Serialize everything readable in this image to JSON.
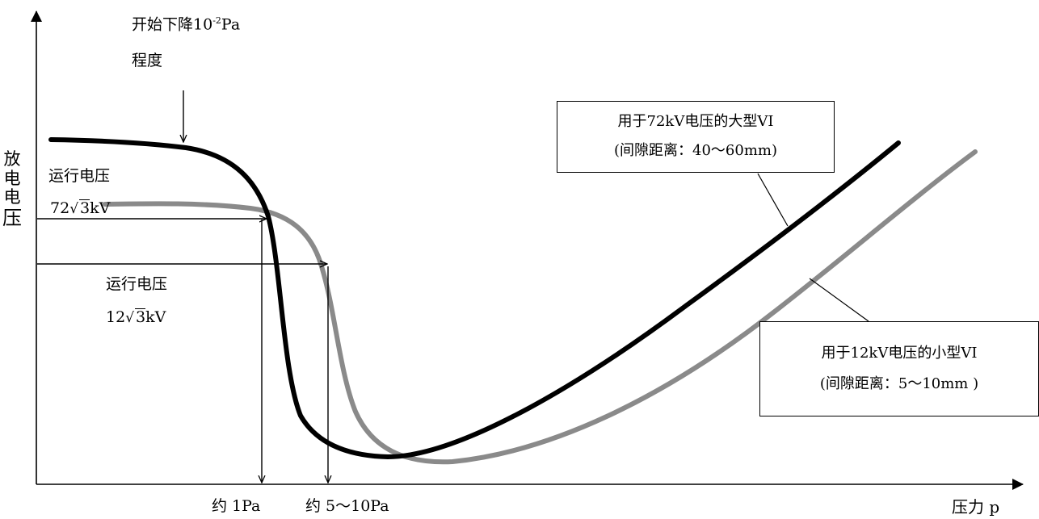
{
  "y_axis_label": [
    "放",
    "电",
    "电",
    "压"
  ],
  "x_axis_label": "压力 p",
  "annotation_start": {
    "line1_prefix": "开始下降10",
    "line1_sup": "-2",
    "line1_suffix": "Pa",
    "line2": "程度"
  },
  "operating_voltage_72": {
    "label": "运行电压",
    "coef": "72",
    "radicand": "3",
    "unit": "kV"
  },
  "operating_voltage_12": {
    "label": "运行电压",
    "coef": "12",
    "radicand": "3",
    "unit": "kV"
  },
  "x_tick_1": "约 1Pa",
  "x_tick_2": "约 5～10Pa",
  "box_72": {
    "line1": "用于72kV电压的大型VI",
    "line2": "(间隙距离：40～60mm)"
  },
  "box_12": {
    "line1": "用于12kV电压的小型VI",
    "line2": "(间隙距离：5～10mm )"
  },
  "colors": {
    "curve_72": "#000000",
    "curve_12": "#8a8a8a",
    "axes": "#000000"
  }
}
